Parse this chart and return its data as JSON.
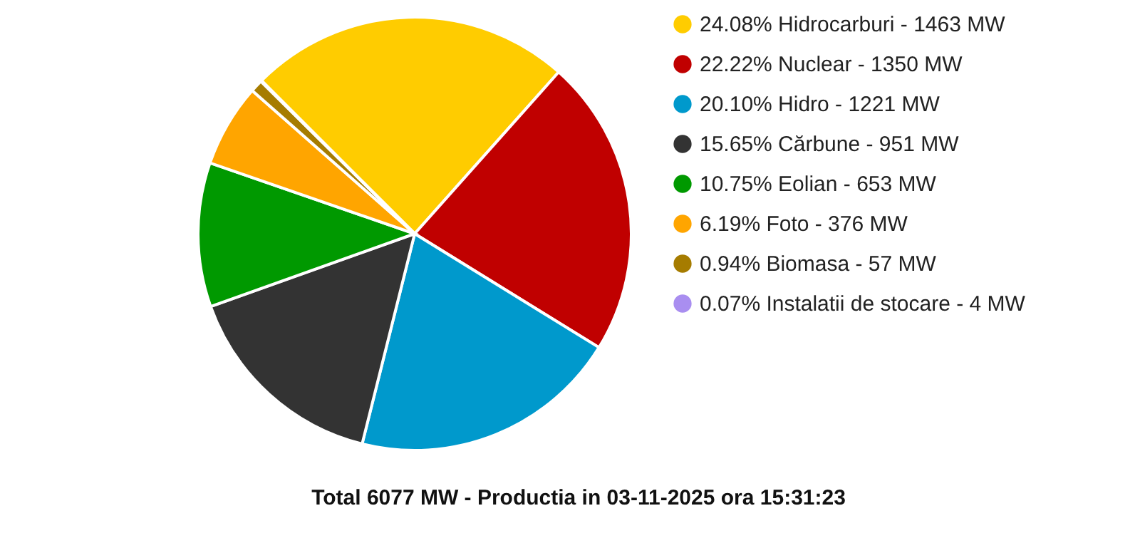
{
  "chart_data": {
    "type": "pie",
    "title": "Total 6077 MW - Productia in 03-11-2025 ora 15:31:23",
    "categories": [
      "24.08% Hidrocarburi - 1463 MW",
      "22.22% Nuclear - 1350 MW",
      "20.10% Hidro - 1221 MW",
      "15.65% Cărbune - 951 MW",
      "10.75% Eolian - 653 MW",
      "6.19% Foto - 376 MW",
      "0.94% Biomasa - 57 MW",
      "0.07% Instalatii de stocare - 4 MW"
    ],
    "values": [
      24.08,
      22.22,
      20.1,
      15.65,
      10.75,
      6.19,
      0.94,
      0.07
    ],
    "colors": [
      "#ffcc00",
      "#c00000",
      "#0099cc",
      "#333333",
      "#009900",
      "#ffa500",
      "#a67c00",
      "#a98ef0"
    ],
    "legend": "right"
  }
}
